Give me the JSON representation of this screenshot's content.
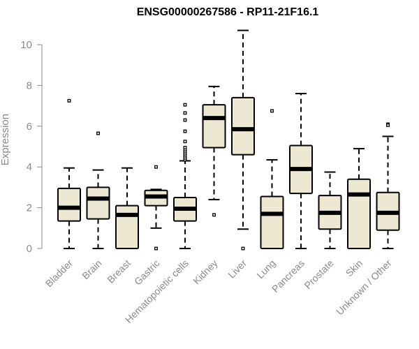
{
  "chart_data": {
    "type": "box",
    "title": "ENSG00000267586 - RP11-21F16.1",
    "xlabel": "",
    "ylabel": "Expression",
    "ylim": [
      0,
      10.5
    ],
    "yticks": [
      0,
      2,
      4,
      6,
      8,
      10
    ],
    "grid": false,
    "legend": "none",
    "colors": {
      "box_fill": "#ede8d1",
      "stroke": "#000000",
      "axis_text": "#8a8a8a",
      "axis_line": "#8a8a8a"
    },
    "categories": [
      "Bladder",
      "Brain",
      "Breast",
      "Gastric",
      "Hematopoietic cells",
      "Kidney",
      "Liver",
      "Lung",
      "Pancreas",
      "Prostate",
      "Skin",
      "Unknown / Other"
    ],
    "boxes": [
      {
        "category": "Bladder",
        "whisker_low": 0.0,
        "q1": 1.35,
        "median": 2.0,
        "q3": 2.95,
        "whisker_high": 3.95,
        "outliers": [
          7.25
        ]
      },
      {
        "category": "Brain",
        "whisker_low": 0.0,
        "q1": 1.45,
        "median": 2.45,
        "q3": 3.0,
        "whisker_high": 3.85,
        "outliers": [
          5.65
        ]
      },
      {
        "category": "Breast",
        "whisker_low": 0.0,
        "q1": 0.0,
        "median": 1.65,
        "q3": 2.1,
        "whisker_high": 3.95,
        "outliers": []
      },
      {
        "category": "Gastric",
        "whisker_low": 1.0,
        "q1": 2.1,
        "median": 2.55,
        "q3": 2.85,
        "whisker_high": 2.9,
        "outliers": [
          4.0,
          0.0
        ]
      },
      {
        "category": "Hematopoietic cells",
        "whisker_low": 0.0,
        "q1": 1.35,
        "median": 1.95,
        "q3": 2.5,
        "whisker_high": 4.3,
        "outliers": [
          4.35,
          4.45,
          4.55,
          4.65,
          4.75,
          4.85,
          4.95,
          5.25,
          5.75,
          6.3,
          6.65,
          7.05
        ]
      },
      {
        "category": "Kidney",
        "whisker_low": 2.4,
        "q1": 4.95,
        "median": 6.4,
        "q3": 7.05,
        "whisker_high": 7.95,
        "outliers": [
          1.65
        ]
      },
      {
        "category": "Liver",
        "whisker_low": 0.95,
        "q1": 4.6,
        "median": 5.85,
        "q3": 7.4,
        "whisker_high": 10.7,
        "outliers": [
          0.0
        ]
      },
      {
        "category": "Lung",
        "whisker_low": 0.0,
        "q1": 0.0,
        "median": 1.7,
        "q3": 2.55,
        "whisker_high": 4.35,
        "outliers": [
          6.75
        ]
      },
      {
        "category": "Pancreas",
        "whisker_low": 0.0,
        "q1": 2.7,
        "median": 3.9,
        "q3": 5.05,
        "whisker_high": 7.6,
        "outliers": []
      },
      {
        "category": "Prostate",
        "whisker_low": 0.0,
        "q1": 0.95,
        "median": 1.75,
        "q3": 2.6,
        "whisker_high": 3.75,
        "outliers": []
      },
      {
        "category": "Skin",
        "whisker_low": 0.0,
        "q1": 0.0,
        "median": 2.65,
        "q3": 3.4,
        "whisker_high": 4.9,
        "outliers": []
      },
      {
        "category": "Unknown / Other",
        "whisker_low": 0.0,
        "q1": 0.9,
        "median": 1.75,
        "q3": 2.75,
        "whisker_high": 5.5,
        "outliers": [
          6.1,
          6.05
        ]
      }
    ]
  }
}
